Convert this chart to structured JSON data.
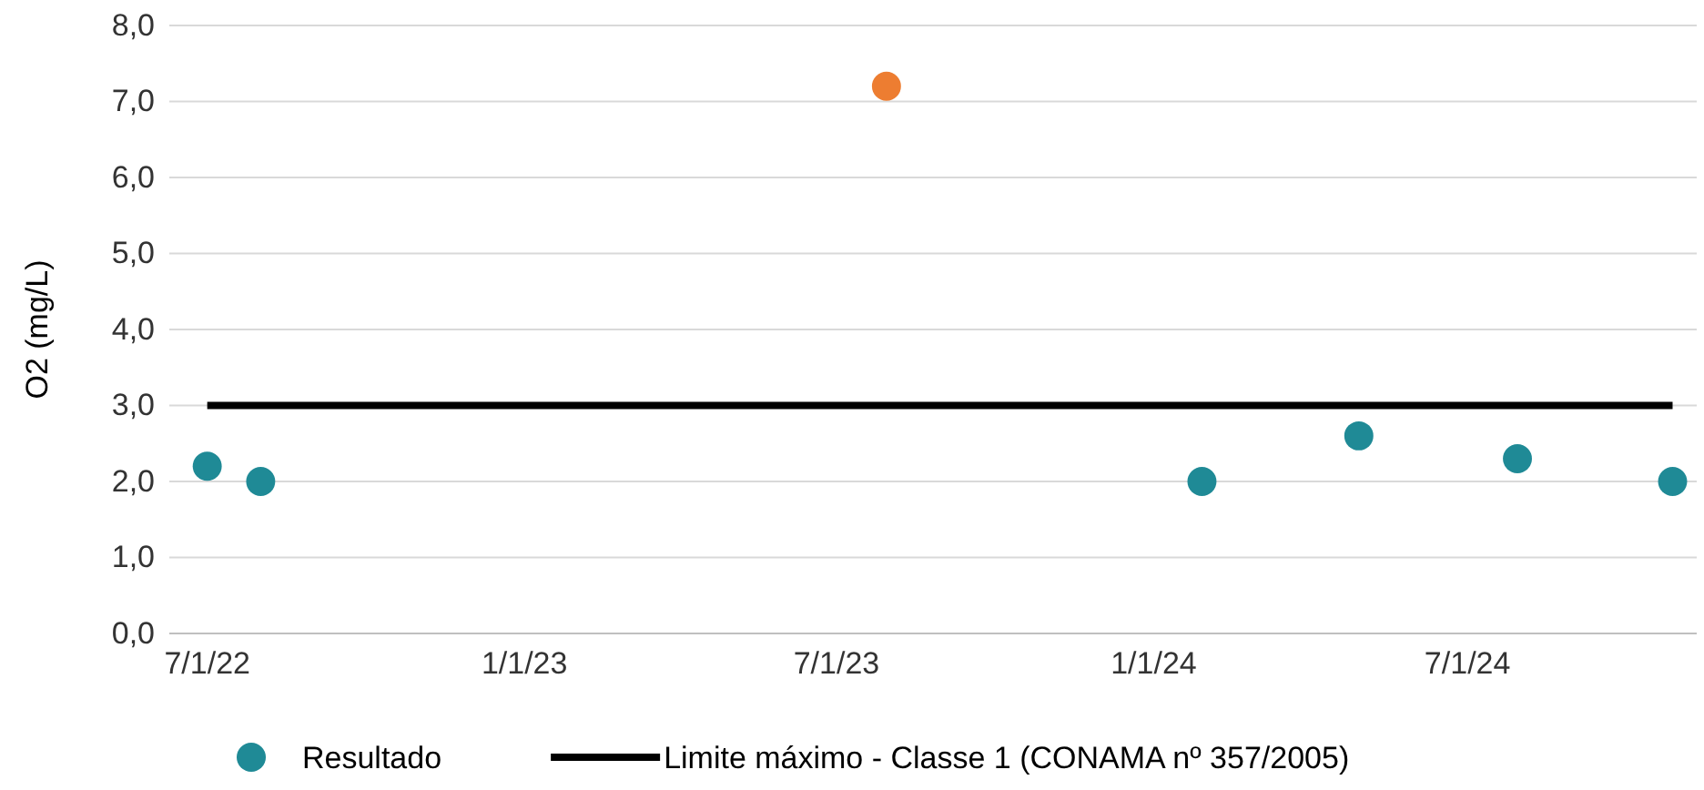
{
  "chart_data": {
    "type": "scatter",
    "ylabel": "O2 (mg/L)",
    "xlim": [
      "2022-06-09",
      "2024-11-11"
    ],
    "xticks": [
      {
        "value": "2022-07-01",
        "label": "7/1/22"
      },
      {
        "value": "2023-01-01",
        "label": "1/1/23"
      },
      {
        "value": "2023-07-01",
        "label": "7/1/23"
      },
      {
        "value": "2024-01-01",
        "label": "1/1/24"
      },
      {
        "value": "2024-07-01",
        "label": "7/1/24"
      }
    ],
    "ylim": [
      0,
      8
    ],
    "yticks": [
      {
        "value": 0,
        "label": "0,0"
      },
      {
        "value": 1,
        "label": "1,0"
      },
      {
        "value": 2,
        "label": "2,0"
      },
      {
        "value": 3,
        "label": "3,0"
      },
      {
        "value": 4,
        "label": "4,0"
      },
      {
        "value": 5,
        "label": "5,0"
      },
      {
        "value": 6,
        "label": "6,0"
      },
      {
        "value": 7,
        "label": "7,0"
      },
      {
        "value": 8,
        "label": "8,0"
      }
    ],
    "grid": "y",
    "legend": "bottom",
    "series": [
      {
        "name": "Resultado",
        "marker": "circle",
        "color": "#1f8a96",
        "x": [
          "2022-07-01",
          "2022-08-01",
          "2023-07-30",
          "2024-01-29",
          "2024-04-29",
          "2024-07-30",
          "2024-10-28"
        ],
        "values": [
          2.2,
          2.0,
          7.2,
          2.0,
          2.6,
          2.3,
          2.0
        ],
        "colors": [
          "#1f8a96",
          "#1f8a96",
          "#ed7d31",
          "#1f8a96",
          "#1f8a96",
          "#1f8a96",
          "#1f8a96"
        ]
      },
      {
        "name": "Limite máximo - Classe 1 (CONAMA nº 357/2005)",
        "type": "line",
        "color": "#000000",
        "x": [
          "2022-07-01",
          "2024-10-28"
        ],
        "values": [
          3,
          3
        ],
        "line_style": "solid"
      }
    ]
  }
}
